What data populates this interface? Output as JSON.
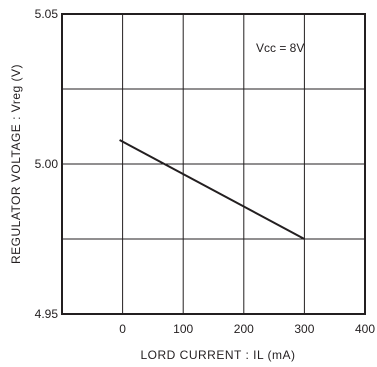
{
  "chart_data": {
    "type": "line",
    "x_ticks": [
      0,
      100,
      200,
      300,
      400
    ],
    "y_ticks": [
      4.95,
      5.0,
      5.05
    ],
    "y_tick_labels": [
      "4.95",
      "5.00",
      "5.05"
    ],
    "xlim": [
      -100,
      400
    ],
    "ylim": [
      4.95,
      5.05
    ],
    "grid": true,
    "xlabel": "LORD  CURRENT : IL (mA)",
    "ylabel": "REGULATOR  VOLTAGE : Vreg  (V)",
    "annotation": "Vcc = 8V",
    "series": [
      {
        "x": [
          -5,
          300
        ],
        "y": [
          5.008,
          4.975
        ]
      }
    ],
    "colors": {
      "line": "#231f20",
      "grid": "#231f20",
      "background": "#ffffff"
    }
  }
}
